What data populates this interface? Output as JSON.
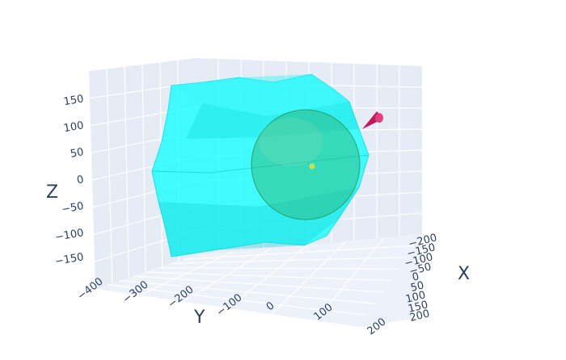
{
  "chart_data": {
    "type": "scatter3d",
    "axes": {
      "x": {
        "title": "X",
        "tick_labels": [
          "200",
          "150",
          "100",
          "50",
          "0",
          "−50",
          "−100",
          "−150",
          "−200"
        ]
      },
      "y": {
        "title": "Y",
        "tick_labels": [
          "−400",
          "−300",
          "−200",
          "−100",
          "0",
          "100",
          "200"
        ]
      },
      "z": {
        "title": "Z",
        "tick_labels": [
          "150",
          "100",
          "50",
          "0",
          "−50",
          "−100",
          "−150"
        ]
      }
    },
    "scene_background": "#e5ecf6",
    "grid": true,
    "legend": false,
    "traces": [
      {
        "kind": "mesh3d-hull",
        "color": "#00ffff",
        "opacity": 0.7
      },
      {
        "kind": "sphere",
        "color": "#2db87a",
        "opacity": 0.55,
        "center": [
          0,
          0,
          0
        ]
      },
      {
        "kind": "marker",
        "color": "#c8e24a",
        "position": [
          0,
          0,
          0
        ]
      },
      {
        "kind": "cone",
        "color": "#c2185b"
      }
    ]
  }
}
